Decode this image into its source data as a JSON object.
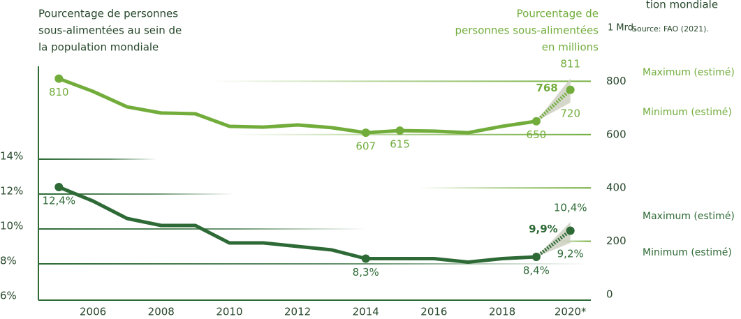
{
  "chart_data": {
    "type": "line",
    "left_title": [
      "Pourcentage de personnes",
      "sous-alimentées au sein de",
      "la population mondiale"
    ],
    "right_title": [
      "Pourcentage de",
      "personnes sous-alimentées",
      "en millions"
    ],
    "source": "Source: FAO (2021).",
    "cut_text": "tion mondiale",
    "x": [
      2005,
      2006,
      2007,
      2008,
      2009,
      2010,
      2011,
      2012,
      2013,
      2014,
      2015,
      2016,
      2017,
      2018,
      2019,
      2020
    ],
    "xlim": [
      2004.4,
      2020.6
    ],
    "xticks": [
      2006,
      2008,
      2010,
      2012,
      2014,
      2016,
      2018,
      {
        "value": 2020,
        "label": "2020*"
      }
    ],
    "ylim": [
      6,
      14
    ],
    "yticks": [
      {
        "value": 6,
        "label": "6%"
      },
      {
        "value": 8,
        "label": "8%"
      },
      {
        "value": 10,
        "label": "10%"
      },
      {
        "value": 12,
        "label": "12%"
      },
      {
        "value": 14,
        "label": "14%"
      }
    ],
    "y2lim": [
      0,
      1000
    ],
    "y2ticks": [
      0,
      200,
      400,
      600,
      800,
      {
        "value": 1000,
        "label": "1 Mrd."
      }
    ],
    "series": [
      {
        "name": "Pourcentage de personnes sous-alimentées en millions",
        "axis": "y2",
        "color": "#72ad3c",
        "values": [
          810,
          762,
          704,
          681,
          678,
          631,
          628,
          636,
          626,
          607,
          615,
          613,
          607,
          631,
          650,
          768
        ],
        "value_labels": [
          "810",
          null,
          null,
          null,
          null,
          null,
          null,
          null,
          null,
          "607",
          "615",
          null,
          null,
          null,
          "650",
          "768"
        ],
        "range": {
          "max": 811,
          "min": 720,
          "max_value_label": "811",
          "min_value_label": "720",
          "max_label": "Maximum (estimé)",
          "min_label": "Minimum (estimé)"
        }
      },
      {
        "name": "Pourcentage de personnes sous-alimentées au sein de la population mondiale",
        "axis": "y",
        "color": "#2d6a36",
        "values": [
          12.4,
          11.6,
          10.6,
          10.2,
          10.2,
          9.2,
          9.2,
          9.0,
          8.8,
          8.3,
          8.3,
          8.3,
          8.1,
          8.3,
          8.4,
          9.9
        ],
        "value_labels": [
          "12,4%",
          null,
          null,
          null,
          null,
          null,
          null,
          null,
          null,
          "8,3%",
          null,
          null,
          null,
          null,
          "8,4%",
          "9,9%"
        ],
        "range": {
          "max": 10.4,
          "min": 9.2,
          "max_value_label": "10,4%",
          "min_value_label": "9,2%",
          "max_label": "Maximum (estimé)",
          "min_label": "Minimum (estimé)"
        }
      }
    ]
  }
}
